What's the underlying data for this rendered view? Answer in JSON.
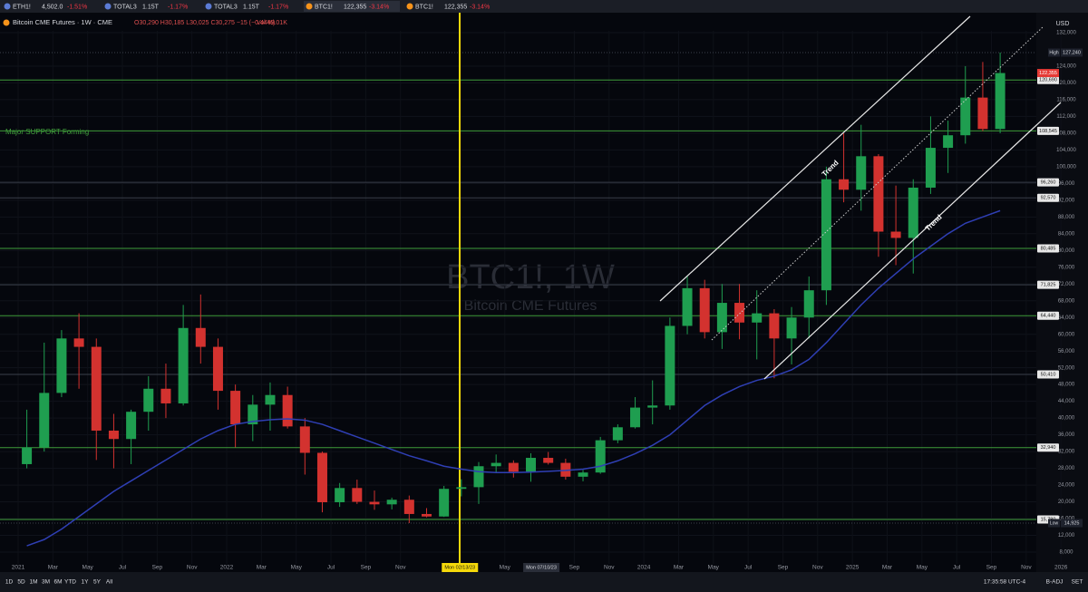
{
  "tabs": [
    {
      "symbol": "ETH1!",
      "price": "4,502.0",
      "change": "-1.51%"
    },
    {
      "symbol": "TOTAL3",
      "price": "1.15T",
      "change": "-1.17%"
    },
    {
      "symbol": "TOTAL3",
      "price": "1.15T",
      "change": "-1.17%"
    },
    {
      "symbol": "BTC1!",
      "price": "122,355",
      "change": "-3.14%"
    },
    {
      "symbol": "BTC1!",
      "price": "122,355",
      "change": "-3.14%"
    }
  ],
  "legend": {
    "title": "Bitcoin CME Futures · 1W · CME",
    "ohlc": "O30,290 H30,185 L30,025 C30,275 −15 (−0.44%)",
    "volume": "Vol 49.01K"
  },
  "currency": "USD",
  "timeframes": [
    "1D",
    "5D",
    "1M",
    "3M",
    "6M",
    "YTD",
    "1Y",
    "5Y",
    "All"
  ],
  "status": {
    "time": "17:35:58 UTC-4",
    "adj": "B-ADJ",
    "set": "SET"
  },
  "chart_data": {
    "type": "candlestick",
    "watermark": "BTC1!, 1W",
    "watermark_sub": "Bitcoin CME Futures",
    "annotations": [
      "Major SUPPORT Forming",
      "Trend",
      "Trend"
    ],
    "colors": {
      "up": "#1f9e50",
      "down": "#d3322f",
      "ma": "#2f3fb4"
    },
    "x": [
      "2021-01",
      "2021-02",
      "2021-03",
      "2021-04",
      "2021-05",
      "2021-06",
      "2021-07",
      "2021-08",
      "2021-09",
      "2021-10",
      "2021-11",
      "2021-12",
      "2022-01",
      "2022-02",
      "2022-03",
      "2022-04",
      "2022-05",
      "2022-06",
      "2022-07",
      "2022-08",
      "2022-09",
      "2022-10",
      "2022-11",
      "2022-12",
      "2023-01",
      "2023-02",
      "2023-03",
      "2023-04",
      "2023-05",
      "2023-06",
      "2023-07",
      "2023-08",
      "2023-09",
      "2023-10",
      "2023-11",
      "2023-12",
      "2024-01",
      "2024-02",
      "2024-03",
      "2024-04",
      "2024-05",
      "2024-06",
      "2024-07",
      "2024-08",
      "2024-09",
      "2024-10",
      "2024-11",
      "2024-12",
      "2025-01",
      "2025-02",
      "2025-03",
      "2025-04",
      "2025-05",
      "2025-06",
      "2025-07",
      "2025-08",
      "2025-09"
    ],
    "open": [
      29000,
      33000,
      46000,
      59000,
      57000,
      37000,
      35000,
      41500,
      47000,
      43500,
      61500,
      57000,
      46500,
      38500,
      43200,
      45500,
      38000,
      31700,
      19900,
      23300,
      20000,
      19400,
      20500,
      17100,
      16500,
      23100,
      23500,
      28500,
      29300,
      27200,
      30500,
      29300,
      26000,
      27000,
      34700,
      37800,
      42500,
      43000,
      62000,
      71000,
      60500,
      67500,
      62800,
      65000,
      59000,
      64000,
      70500,
      97000,
      94500,
      102500,
      84500,
      83000,
      95000,
      104500,
      107500,
      116500,
      109000
    ],
    "high": [
      42000,
      58000,
      61000,
      65000,
      59000,
      41000,
      42000,
      50000,
      53000,
      67000,
      69500,
      59000,
      48000,
      45500,
      48500,
      47500,
      40000,
      32000,
      24500,
      25300,
      22700,
      21000,
      21500,
      18500,
      23800,
      25400,
      29500,
      31300,
      29900,
      31600,
      31900,
      30300,
      27600,
      35500,
      38500,
      45000,
      49000,
      64000,
      74000,
      73000,
      72000,
      72000,
      70500,
      66000,
      66500,
      73800,
      100000,
      108000,
      110000,
      103000,
      95500,
      97000,
      112000,
      111000,
      124000,
      125000,
      127240
    ],
    "low": [
      28000,
      32000,
      45000,
      47000,
      30000,
      28000,
      29000,
      37000,
      40000,
      43000,
      53000,
      42000,
      33000,
      34500,
      37000,
      37500,
      26500,
      17500,
      18800,
      19500,
      18100,
      18200,
      14925,
      16300,
      16400,
      21300,
      19500,
      27000,
      25800,
      24800,
      28900,
      25300,
      24900,
      26700,
      34000,
      37500,
      38500,
      42000,
      60000,
      59000,
      56500,
      58800,
      54000,
      49500,
      52800,
      59000,
      67000,
      91500,
      89500,
      78500,
      76500,
      74500,
      93500,
      98500,
      105500,
      108500,
      108000
    ],
    "close": [
      33000,
      46000,
      59000,
      57000,
      37000,
      35000,
      41500,
      47000,
      43500,
      61500,
      57000,
      46500,
      38500,
      43200,
      45500,
      38000,
      31700,
      19900,
      23300,
      20000,
      19400,
      20500,
      17100,
      16500,
      23100,
      23500,
      28500,
      29300,
      27200,
      30500,
      29300,
      26000,
      27000,
      34700,
      37800,
      42500,
      43000,
      62000,
      71000,
      60500,
      67500,
      62800,
      65000,
      59000,
      64000,
      70500,
      97000,
      94500,
      102500,
      84500,
      83000,
      95000,
      104500,
      107500,
      116500,
      109000,
      122355
    ],
    "ma_values": [
      9500,
      11000,
      13500,
      16500,
      19500,
      22500,
      25000,
      27500,
      30000,
      32500,
      35000,
      37000,
      38500,
      39200,
      39600,
      39800,
      39500,
      38500,
      37000,
      35500,
      34000,
      32500,
      31000,
      29800,
      28500,
      27800,
      27200,
      27000,
      27000,
      27100,
      27300,
      27500,
      27800,
      28500,
      29800,
      31500,
      33500,
      36000,
      39500,
      43000,
      45500,
      47500,
      49000,
      50000,
      51500,
      54000,
      58000,
      62500,
      67000,
      71000,
      74500,
      78000,
      81000,
      84000,
      86500,
      88000,
      89500
    ],
    "ylim": [
      5500,
      135000
    ],
    "yticks": [
      {
        "value": 8000,
        "label": "8,000"
      },
      {
        "value": 12000,
        "label": "12,000"
      },
      {
        "value": 16000,
        "label": "16,000"
      },
      {
        "value": 20000,
        "label": "20,000"
      },
      {
        "value": 24000,
        "label": "24,000"
      },
      {
        "value": 28000,
        "label": "28,000"
      },
      {
        "value": 32000,
        "label": "32,000"
      },
      {
        "value": 36000,
        "label": "36,000"
      },
      {
        "value": 40000,
        "label": "40,000"
      },
      {
        "value": 44000,
        "label": "44,000"
      },
      {
        "value": 48000,
        "label": "48,000"
      },
      {
        "value": 52000,
        "label": "52,000"
      },
      {
        "value": 56000,
        "label": "56,000"
      },
      {
        "value": 60000,
        "label": "60,000"
      },
      {
        "value": 64000,
        "label": "64,000"
      },
      {
        "value": 68000,
        "label": "68,000"
      },
      {
        "value": 72000,
        "label": "72,000"
      },
      {
        "value": 76000,
        "label": "76,000"
      },
      {
        "value": 80000,
        "label": "80,000"
      },
      {
        "value": 84000,
        "label": "84,000"
      },
      {
        "value": 88000,
        "label": "88,000"
      },
      {
        "value": 92000,
        "label": "92,000"
      },
      {
        "value": 96000,
        "label": "96,000"
      },
      {
        "value": 100000,
        "label": "100,000"
      },
      {
        "value": 104000,
        "label": "104,000"
      },
      {
        "value": 108000,
        "label": "108,000"
      },
      {
        "value": 112000,
        "label": "112,000"
      },
      {
        "value": 116000,
        "label": "116,000"
      },
      {
        "value": 120000,
        "label": "120,000"
      },
      {
        "value": 124000,
        "label": "124,000"
      },
      {
        "value": 132000,
        "label": "132,000"
      }
    ],
    "xticks": [
      {
        "value": "2021-01",
        "label": "2021"
      },
      {
        "value": "2021-03",
        "label": "Mar"
      },
      {
        "value": "2021-05",
        "label": "May"
      },
      {
        "value": "2021-07",
        "label": "Jul"
      },
      {
        "value": "2021-09",
        "label": "Sep"
      },
      {
        "value": "2021-11",
        "label": "Nov"
      },
      {
        "value": "2022-01",
        "label": "2022"
      },
      {
        "value": "2022-03",
        "label": "Mar"
      },
      {
        "value": "2022-05",
        "label": "May"
      },
      {
        "value": "2022-07",
        "label": "Jul"
      },
      {
        "value": "2022-09",
        "label": "Sep"
      },
      {
        "value": "2022-11",
        "label": "Nov"
      },
      {
        "value": "2023-05",
        "label": "May"
      },
      {
        "value": "2023-09",
        "label": "Sep"
      },
      {
        "value": "2023-11",
        "label": "Nov"
      },
      {
        "value": "2024-01",
        "label": "2024"
      },
      {
        "value": "2024-03",
        "label": "Mar"
      },
      {
        "value": "2024-05",
        "label": "May"
      },
      {
        "value": "2024-07",
        "label": "Jul"
      },
      {
        "value": "2024-09",
        "label": "Sep"
      },
      {
        "value": "2024-11",
        "label": "Nov"
      },
      {
        "value": "2025-01",
        "label": "2025"
      },
      {
        "value": "2025-03",
        "label": "Mar"
      },
      {
        "value": "2025-05",
        "label": "May"
      },
      {
        "value": "2025-07",
        "label": "Jul"
      },
      {
        "value": "2025-09",
        "label": "Sep"
      },
      {
        "value": "2025-11",
        "label": "Nov"
      },
      {
        "value": "2026-01",
        "label": "2026"
      }
    ],
    "date_markers": [
      {
        "value": "2023-02",
        "label": "Mon 02/13/23"
      },
      {
        "value": "2023-07",
        "label": "Mon 07/10/23"
      }
    ],
    "levels": [
      {
        "value": 120690,
        "label": "120,690",
        "color": "#3f9c3a"
      },
      {
        "value": 108545,
        "label": "108,545",
        "color": "#3f9c3a"
      },
      {
        "value": 96260,
        "label": "96,260",
        "color": "#3a3f4a"
      },
      {
        "value": 92570,
        "label": "92,570",
        "color": "#3a3f4a"
      },
      {
        "value": 80485,
        "label": "80,485",
        "color": "#3f9c3a"
      },
      {
        "value": 71825,
        "label": "71,825",
        "color": "#3a3f4a"
      },
      {
        "value": 64440,
        "label": "64,440",
        "color": "#3f9c3a"
      },
      {
        "value": 50410,
        "label": "50,410",
        "color": "#3a3f4a"
      },
      {
        "value": 32940,
        "label": "32,940",
        "color": "#3f9c3a"
      },
      {
        "value": 15780,
        "label": "15,780",
        "color": "#3f9c3a"
      }
    ],
    "high_label": {
      "tag": "High",
      "value": 127240,
      "label": "127,240"
    },
    "low_label": {
      "tag": "Low",
      "value": 14925,
      "label": "14,925"
    },
    "last_price": {
      "value": 122355,
      "label": "122,355",
      "color": "#e53935"
    }
  }
}
